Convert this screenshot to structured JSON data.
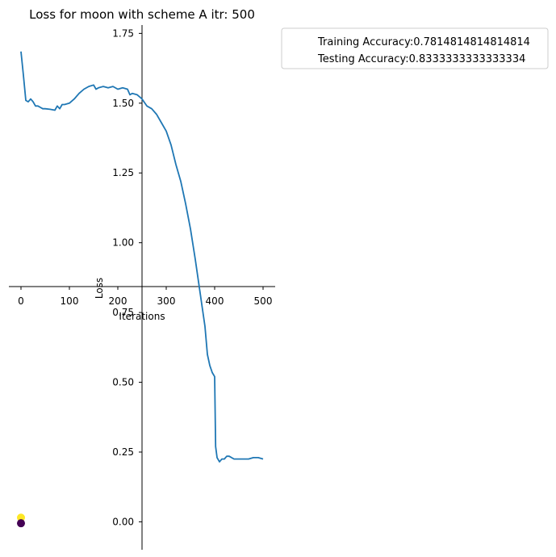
{
  "chart_data": {
    "type": "line",
    "title": "Loss for moon with scheme A itr: 500",
    "xlabel": "Iterations",
    "ylabel": "Loss",
    "xlim": [
      -25,
      525
    ],
    "ylim": [
      -0.1,
      1.78
    ],
    "x_ticks": [
      0,
      100,
      200,
      300,
      400,
      500
    ],
    "y_ticks": [
      0.0,
      0.25,
      0.5,
      0.75,
      1.0,
      1.25,
      1.5,
      1.75
    ],
    "x_tick_labels": [
      "0",
      "100",
      "200",
      "300",
      "400",
      "500"
    ],
    "y_tick_labels": [
      "0.00",
      "0.25",
      "0.50",
      "0.75",
      "1.00",
      "1.25",
      "1.50",
      "1.75"
    ],
    "grid": false,
    "series": [
      {
        "color": "#1f77b4",
        "x": [
          0,
          5,
          10,
          15,
          20,
          25,
          30,
          35,
          40,
          45,
          50,
          60,
          70,
          75,
          80,
          85,
          90,
          100,
          110,
          120,
          130,
          140,
          150,
          155,
          160,
          170,
          180,
          190,
          200,
          210,
          220,
          225,
          230,
          240,
          250,
          260,
          270,
          280,
          290,
          300,
          310,
          320,
          330,
          340,
          350,
          360,
          370,
          380,
          385,
          390,
          395,
          400,
          402,
          405,
          410,
          415,
          420,
          425,
          430,
          440,
          450,
          460,
          470,
          480,
          490,
          500
        ],
        "y": [
          1.685,
          1.6,
          1.51,
          1.505,
          1.515,
          1.505,
          1.49,
          1.49,
          1.485,
          1.48,
          1.48,
          1.478,
          1.475,
          1.49,
          1.48,
          1.495,
          1.495,
          1.5,
          1.515,
          1.535,
          1.55,
          1.56,
          1.565,
          1.55,
          1.555,
          1.56,
          1.555,
          1.56,
          1.55,
          1.555,
          1.55,
          1.53,
          1.535,
          1.53,
          1.515,
          1.49,
          1.48,
          1.46,
          1.43,
          1.4,
          1.35,
          1.28,
          1.22,
          1.14,
          1.05,
          0.94,
          0.82,
          0.7,
          0.6,
          0.56,
          0.535,
          0.52,
          0.27,
          0.23,
          0.215,
          0.225,
          0.225,
          0.235,
          0.235,
          0.225,
          0.225,
          0.225,
          0.225,
          0.23,
          0.23,
          0.225
        ]
      }
    ],
    "scatter_points": [
      {
        "x": 0,
        "y": 0.015,
        "color": "#fde725"
      },
      {
        "x": 0,
        "y": -0.005,
        "color": "#440154"
      }
    ],
    "legend": {
      "placement": "outside top-right",
      "entries": [
        "Training Accuracy:0.7814814814814814",
        "Testing Accuracy:0.8333333333333334"
      ]
    },
    "overlay_axis": {
      "xlim": [
        -25,
        525
      ],
      "x_ticks": [
        0,
        100,
        200,
        300,
        400,
        500
      ],
      "x_tick_labels": [
        "0",
        "100",
        "200",
        "300",
        "400",
        "500"
      ],
      "xlabel": "Iterations"
    }
  }
}
